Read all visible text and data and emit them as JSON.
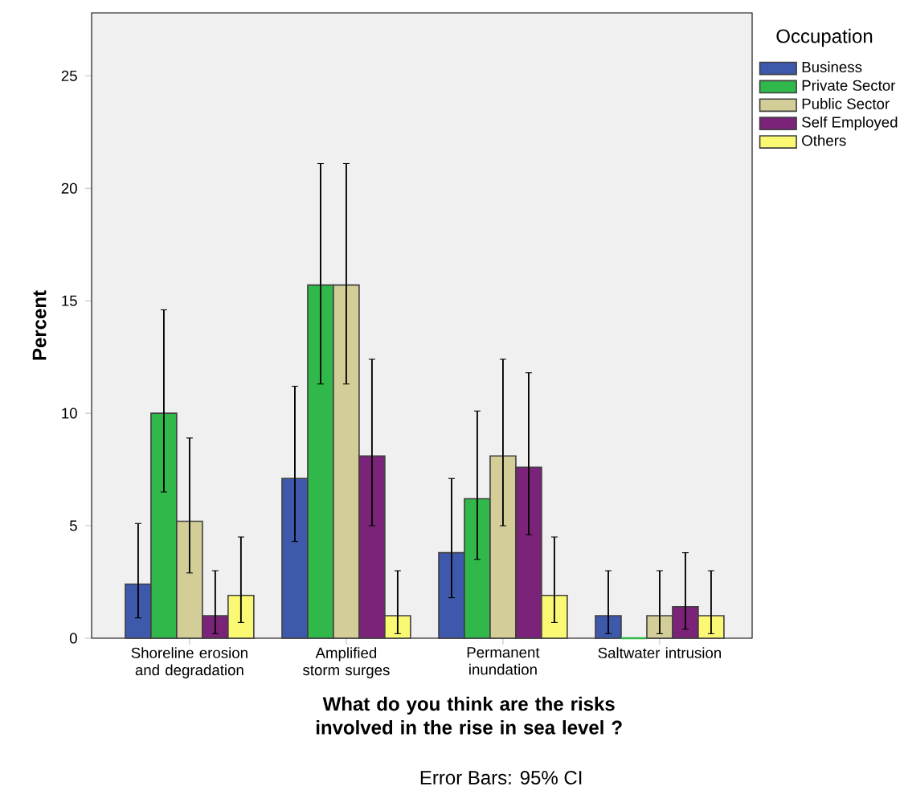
{
  "chart_data": {
    "type": "bar",
    "xlabel": "What do you think are the risks involved in the rise in sea level ?",
    "ylabel": "Percent",
    "legend_title": "Occupation",
    "annotations": [
      "Error Bars: 95% CI"
    ],
    "categories": [
      "Shoreline erosion and degradation",
      "Amplified storm surges",
      "Permanent inundation",
      "Saltwater intrusion"
    ],
    "series": [
      {
        "name": "Business",
        "color": "#3e58ac",
        "values": [
          2.4,
          7.1,
          3.8,
          1.0
        ],
        "errors": [
          [
            0.9,
            5.1
          ],
          [
            4.3,
            11.2
          ],
          [
            1.8,
            7.1
          ],
          [
            0.2,
            3.0
          ]
        ]
      },
      {
        "name": "Private Sector",
        "color": "#30b84a",
        "values": [
          10.0,
          15.7,
          6.2,
          0
        ],
        "errors": [
          [
            6.5,
            14.6
          ],
          [
            11.3,
            21.1
          ],
          [
            3.5,
            10.1
          ],
          null
        ]
      },
      {
        "name": "Public Sector",
        "color": "#d3ce97",
        "values": [
          5.2,
          15.7,
          8.1,
          1.0
        ],
        "errors": [
          [
            2.9,
            8.9
          ],
          [
            11.3,
            21.1
          ],
          [
            5.0,
            12.4
          ],
          [
            0.2,
            3.0
          ]
        ]
      },
      {
        "name": "Self Employed",
        "color": "#7b2378",
        "values": [
          1.0,
          8.1,
          7.6,
          1.4
        ],
        "errors": [
          [
            0.2,
            3.0
          ],
          [
            5.0,
            12.4
          ],
          [
            4.6,
            11.8
          ],
          [
            0.4,
            3.8
          ]
        ]
      },
      {
        "name": "Others",
        "color": "#fbf873",
        "values": [
          1.9,
          1.0,
          1.9,
          1.0
        ],
        "errors": [
          [
            0.7,
            4.5
          ],
          [
            0.2,
            3.0
          ],
          [
            0.7,
            4.5
          ],
          [
            0.2,
            3.0
          ]
        ]
      }
    ],
    "ylim": [
      0,
      27.8
    ],
    "yticks": [
      0,
      5,
      10,
      15,
      20,
      25
    ],
    "grid": false,
    "legend": "top right"
  }
}
